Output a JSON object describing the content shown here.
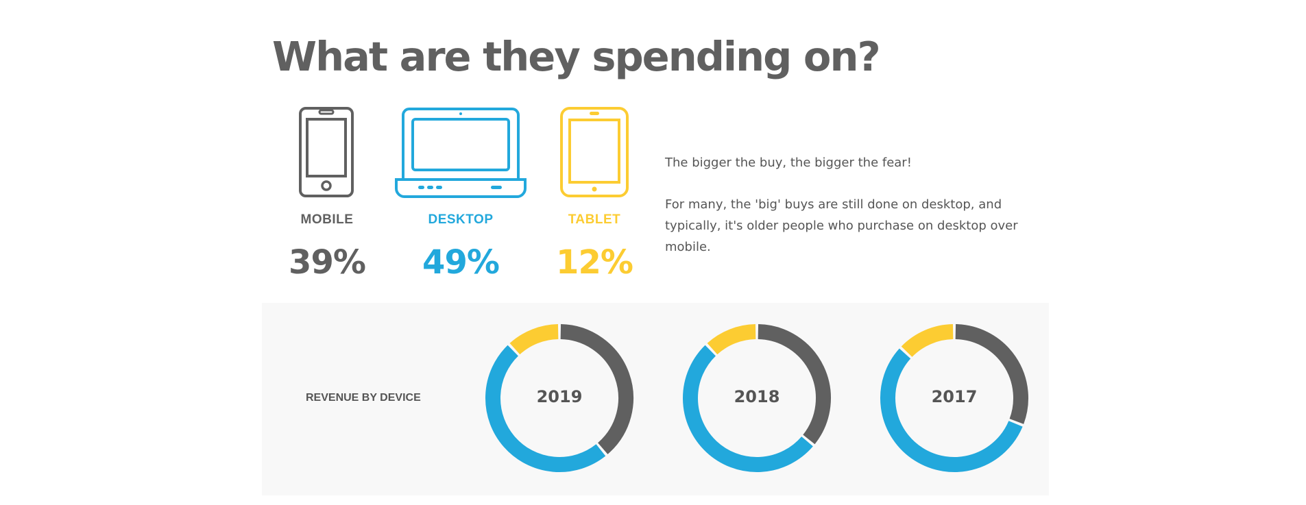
{
  "title": "What are they spending on?",
  "colors": {
    "mobile": "#606060",
    "desktop": "#22a8dc",
    "tablet": "#fccc32"
  },
  "devices": [
    {
      "label": "MOBILE",
      "percent": "39%",
      "icon": "smartphone-icon"
    },
    {
      "label": "DESKTOP",
      "percent": "49%",
      "icon": "laptop-icon"
    },
    {
      "label": "TABLET",
      "percent": "12%",
      "icon": "tablet-icon"
    }
  ],
  "blurb": {
    "headline": "The bigger the buy, the bigger the fear!",
    "body": "For many, the 'big' buys are still done on desktop, and typically, it's older people who purchase on desktop over mobile."
  },
  "chart_data": {
    "type": "pie",
    "title": "REVENUE BY DEVICE",
    "legend": "none",
    "charts": [
      {
        "label": "2019",
        "slices": [
          {
            "category": "mobile",
            "value": 39
          },
          {
            "category": "desktop",
            "value": 49
          },
          {
            "category": "tablet",
            "value": 12
          }
        ]
      },
      {
        "label": "2018",
        "slices": [
          {
            "category": "mobile",
            "value": 36
          },
          {
            "category": "desktop",
            "value": 52
          },
          {
            "category": "tablet",
            "value": 12
          }
        ]
      },
      {
        "label": "2017",
        "slices": [
          {
            "category": "mobile",
            "value": 31
          },
          {
            "category": "desktop",
            "value": 56
          },
          {
            "category": "tablet",
            "value": 13
          }
        ]
      }
    ]
  }
}
